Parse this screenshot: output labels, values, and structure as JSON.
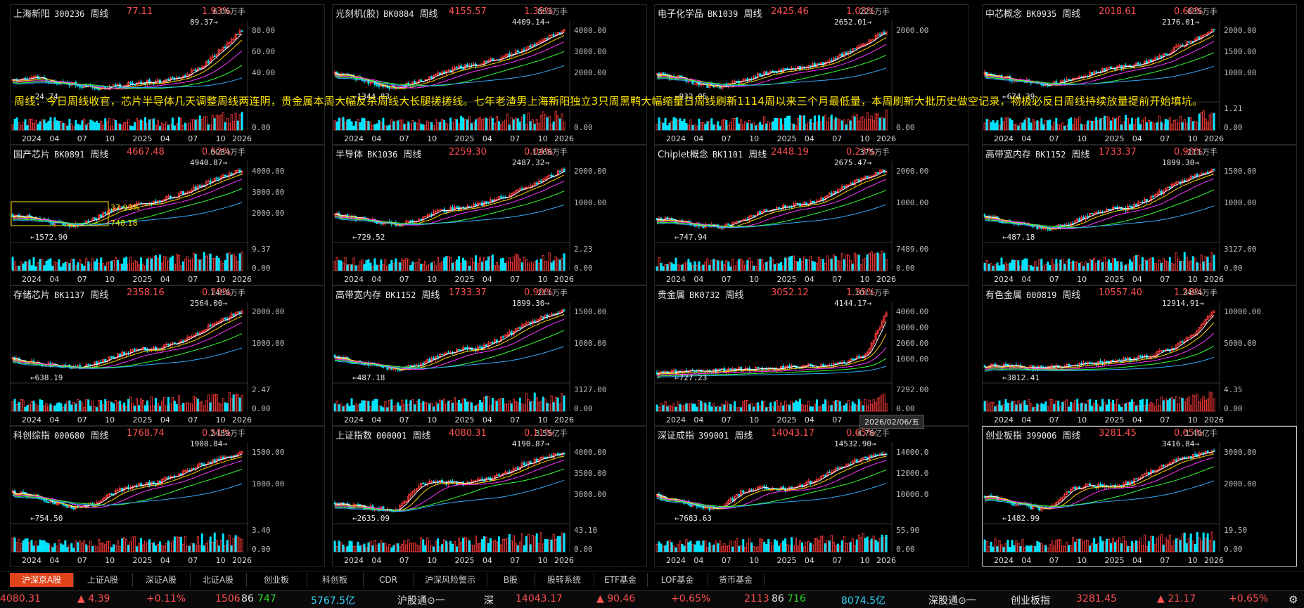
{
  "colors": {
    "up": "#ff3b3b",
    "down": "#00e5ff",
    "text": "#e6e6e6",
    "grid": "#1c1c1c",
    "accent": "#e0421a"
  },
  "panels": [
    {
      "name": "上海新阳",
      "code": "300236",
      "period": "周线",
      "price": "77.11",
      "pct": "1.93%",
      "vol_unit": "6.06万手",
      "high_label": "89.37",
      "low_label": "24.74",
      "yticks": [
        "80.00",
        "60.00",
        "40.00"
      ],
      "vticks": [
        "",
        "0.00"
      ],
      "seed": 11,
      "trend": [
        0.2,
        0.25,
        0.2,
        0.15,
        0.1,
        0.12,
        0.18,
        0.2,
        0.25,
        0.4,
        0.65,
        0.95
      ]
    },
    {
      "name": "光刻机(胶)",
      "code": "BK0884",
      "period": "周线",
      "price": "4155.57",
      "pct": "1.35%",
      "vol_unit": "853万手",
      "high_label": "4409.14",
      "low_label": "1344.83",
      "yticks": [
        "4000.00",
        "3000.00",
        "2000.00"
      ],
      "vticks": [
        "",
        "0.00"
      ],
      "seed": 23,
      "trend": [
        0.3,
        0.25,
        0.15,
        0.1,
        0.2,
        0.3,
        0.4,
        0.45,
        0.55,
        0.65,
        0.8,
        0.95
      ]
    },
    {
      "name": "电子化学品",
      "code": "BK1039",
      "period": "周线",
      "price": "2425.46",
      "pct": "1.03%",
      "vol_unit": "221万手",
      "high_label": "2652.01",
      "low_label": "932.05",
      "yticks": [
        "2000.00",
        ""
      ],
      "vticks": [
        "",
        "0.00"
      ],
      "seed": 31,
      "trend": [
        0.3,
        0.25,
        0.15,
        0.12,
        0.2,
        0.3,
        0.35,
        0.4,
        0.45,
        0.6,
        0.75,
        0.92
      ]
    },
    {
      "name": "中芯概念",
      "code": "BK0935",
      "period": "周线",
      "price": "2018.61",
      "pct": "0.60%",
      "vol_unit": "835万手",
      "high_label": "2176.01",
      "low_label": "674.39",
      "yticks": [
        "2000.00",
        "1500.00",
        "1000.00"
      ],
      "vticks": [
        "1.21",
        "0.00"
      ],
      "seed": 47,
      "trend": [
        0.3,
        0.25,
        0.2,
        0.15,
        0.2,
        0.3,
        0.38,
        0.42,
        0.5,
        0.65,
        0.8,
        0.95
      ]
    },
    {
      "name": "国产芯片",
      "code": "BK0891",
      "period": "周线",
      "price": "4667.48",
      "pct": "0.52%",
      "vol_unit": "6084万手",
      "high_label": "4940.87",
      "low_label": "1572.90",
      "yticks": [
        "4000.00",
        "3000.00",
        "2000.00"
      ],
      "vticks": [
        "9.37",
        "0.00"
      ],
      "seed": 53,
      "trend": [
        0.3,
        0.25,
        0.18,
        0.15,
        0.25,
        0.4,
        0.45,
        0.5,
        0.6,
        0.72,
        0.85,
        0.95
      ],
      "box": {
        "pct": "37.93%",
        "val": "748.18"
      }
    },
    {
      "name": "半导体",
      "code": "BK1036",
      "period": "周线",
      "price": "2259.30",
      "pct": "0.04%",
      "vol_unit": "1268万手",
      "high_label": "2487.32",
      "low_label": "729.52",
      "yticks": [
        "2000.00",
        "1000.00"
      ],
      "vticks": [
        "2.23",
        "0.00"
      ],
      "seed": 61,
      "trend": [
        0.3,
        0.25,
        0.2,
        0.15,
        0.22,
        0.35,
        0.4,
        0.45,
        0.55,
        0.68,
        0.82,
        0.95
      ]
    },
    {
      "name": "Chiplet概念",
      "code": "BK1101",
      "period": "周线",
      "price": "2448.19",
      "pct": "0.23%",
      "vol_unit": "375万手",
      "high_label": "2675.47",
      "low_label": "747.94",
      "yticks": [
        "2000.00",
        "1000.00"
      ],
      "vticks": [
        "7489.00",
        "0.00"
      ],
      "seed": 71,
      "trend": [
        0.25,
        0.2,
        0.15,
        0.12,
        0.2,
        0.35,
        0.42,
        0.45,
        0.55,
        0.7,
        0.85,
        0.95
      ]
    },
    {
      "name": "高带宽内存",
      "code": "BK1152",
      "period": "周线",
      "price": "1733.37",
      "pct": "0.90%",
      "vol_unit": "211万手",
      "high_label": "1899.30",
      "low_label": "487.18",
      "yticks": [
        "1500.00",
        "1000.00"
      ],
      "vticks": [
        "3127.00",
        "0.00"
      ],
      "seed": 83,
      "trend": [
        0.3,
        0.2,
        0.15,
        0.1,
        0.15,
        0.3,
        0.38,
        0.4,
        0.55,
        0.72,
        0.85,
        0.95
      ]
    },
    {
      "name": "存储芯片",
      "code": "BK1137",
      "period": "周线",
      "price": "2358.16",
      "pct": "0.29%",
      "vol_unit": "1458万手",
      "high_label": "2564.00",
      "low_label": "638.19",
      "yticks": [
        "2000.00",
        "1000.00"
      ],
      "vticks": [
        "2.47",
        "0.00"
      ],
      "seed": 97,
      "trend": [
        0.25,
        0.2,
        0.15,
        0.12,
        0.18,
        0.3,
        0.38,
        0.4,
        0.5,
        0.65,
        0.8,
        0.95
      ]
    },
    {
      "name": "高带宽内存",
      "code": "BK1152",
      "period": "周线",
      "price": "1733.37",
      "pct": "0.90%",
      "vol_unit": "211万手",
      "high_label": "1899.30",
      "low_label": "487.18",
      "yticks": [
        "1500.00",
        "1000.00"
      ],
      "vticks": [
        "3127.00",
        "0.00"
      ],
      "seed": 83,
      "trend": [
        0.3,
        0.2,
        0.15,
        0.1,
        0.15,
        0.3,
        0.38,
        0.4,
        0.55,
        0.72,
        0.85,
        0.95
      ]
    },
    {
      "name": "贵金属",
      "code": "BK0732",
      "period": "周线",
      "price": "3052.12",
      "pct": "1.35%",
      "vol_unit": "1011万手",
      "high_label": "4144.17",
      "low_label": "727.23",
      "yticks": [
        "4000.00",
        "3000.00",
        "2000.00",
        "1000.00"
      ],
      "vticks": [
        "7292.00",
        "0.00"
      ],
      "seed": 101,
      "trend": [
        0.05,
        0.06,
        0.07,
        0.08,
        0.1,
        0.1,
        0.12,
        0.14,
        0.16,
        0.2,
        0.3,
        0.9
      ]
    },
    {
      "name": "有色金属",
      "code": "000819",
      "period": "周线",
      "price": "10557.40",
      "pct": "1.28%",
      "vol_unit": "3494万手",
      "high_label": "12914.91",
      "low_label": "3812.41",
      "yticks": [
        "10000.00",
        "5000.00"
      ],
      "vticks": [
        "4.35",
        "0.00"
      ],
      "seed": 113,
      "trend": [
        0.15,
        0.14,
        0.13,
        0.12,
        0.15,
        0.18,
        0.2,
        0.25,
        0.3,
        0.4,
        0.6,
        0.95
      ]
    },
    {
      "name": "科创综指",
      "code": "000680",
      "period": "周线",
      "price": "1768.74",
      "pct": "0.51%",
      "vol_unit": "2489万手",
      "high_label": "1908.84",
      "low_label": "754.50",
      "yticks": [
        "1500.00",
        "1000.00"
      ],
      "vticks": [
        "3.40",
        "0.00"
      ],
      "seed": 127,
      "trend": [
        0.35,
        0.3,
        0.2,
        0.12,
        0.2,
        0.38,
        0.45,
        0.5,
        0.62,
        0.75,
        0.85,
        0.92
      ]
    },
    {
      "name": "上证指数",
      "code": "000001",
      "period": "周线",
      "price": "4080.31",
      "pct": "0.11%",
      "vol_unit": "3.55亿手",
      "high_label": "4190.87",
      "low_label": "2635.09",
      "yticks": [
        "4000.00",
        "3500.00",
        "3000.00"
      ],
      "vticks": [
        "43.10",
        "0.00"
      ],
      "seed": 131,
      "trend": [
        0.2,
        0.15,
        0.12,
        0.1,
        0.45,
        0.5,
        0.48,
        0.52,
        0.6,
        0.75,
        0.85,
        0.92
      ]
    },
    {
      "name": "深证成指",
      "code": "399001",
      "period": "周线",
      "price": "14043.17",
      "pct": "0.65%",
      "vol_unit": "4.78亿手",
      "high_label": "14532.90",
      "low_label": "7683.63",
      "yticks": [
        "14000.0",
        "12000.0",
        "10000.0"
      ],
      "vticks": [
        "55.90",
        "0.00"
      ],
      "seed": 139,
      "trend": [
        0.3,
        0.22,
        0.15,
        0.1,
        0.35,
        0.42,
        0.4,
        0.45,
        0.6,
        0.75,
        0.85,
        0.92
      ]
    },
    {
      "name": "创业板指",
      "code": "399006",
      "period": "周线",
      "price": "3281.45",
      "pct": "0.65%",
      "vol_unit": "1.40亿手",
      "high_label": "3416.84",
      "low_label": "1482.99",
      "yticks": [
        "3000.00",
        "2000.00"
      ],
      "vticks": [
        "19.50",
        "0.00"
      ],
      "seed": 149,
      "trend": [
        0.3,
        0.22,
        0.15,
        0.1,
        0.38,
        0.45,
        0.42,
        0.5,
        0.65,
        0.8,
        0.88,
        0.95
      ]
    }
  ],
  "xlabels": [
    "2024",
    "04",
    "07",
    "10",
    "2025",
    "04",
    "07",
    "10",
    "2026"
  ],
  "overlay_text": "周线：今日周线收官，芯片半导体几天调整周线两连阴，贵金属本周大幅反杀周线大长腿搓搓线。七年老渣男上海新阳独立3只周黑鸭大幅缩量日周线刷新1114周以来三个月最低量，本周刷新大批历史做空记录，物极必反日周线持续放量提前开始填坑。",
  "tooltip": "2026/02/06/五",
  "tabs": [
    "沪深京A股",
    "上证A股",
    "深证A股",
    "北证A股",
    "创业板",
    "科创板",
    "CDR",
    "沪深风险警示",
    "B股",
    "股转系统",
    "ETF基金",
    "LOF基金",
    "货币基金"
  ],
  "status": {
    "sh_index": "4080.31",
    "sh_chg": "▲ 4.39",
    "sh_pct": "+0.11%",
    "sh_up": "1506",
    "sh_flat": "86",
    "sh_down": "747",
    "sh_amount": "5767.5亿",
    "sh_link": "沪股通⊙一",
    "sz_label": "深",
    "sz_index": "14043.17",
    "sz_chg": "▲ 90.46",
    "sz_pct": "+0.65%",
    "sz_up": "2113",
    "sz_flat": "86",
    "sz_down": "716",
    "sz_amount": "8074.5亿",
    "sz_link": "深股通⊙一",
    "cy_label": "创业板指",
    "cy_index": "3281.45",
    "cy_chg": "▲ 21.17",
    "cy_pct": "+0.65%"
  }
}
